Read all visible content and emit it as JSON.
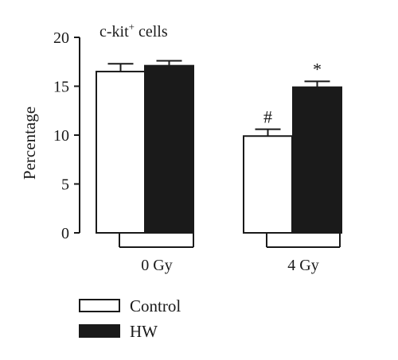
{
  "chart_data": {
    "type": "bar",
    "title": "c-kit",
    "title_superscript": "+",
    "title_suffix": " cells",
    "xlabel": "",
    "ylabel": "Percentage",
    "ylim": [
      0,
      20
    ],
    "yticks": [
      0,
      5,
      10,
      15,
      20
    ],
    "groups": [
      "0 Gy",
      "4 Gy"
    ],
    "series": [
      {
        "name": "Control",
        "values": [
          16.5,
          9.9
        ],
        "errors": [
          0.8,
          0.7
        ],
        "fill": "#ffffff",
        "stroke": "#1a1a1a"
      },
      {
        "name": "HW",
        "values": [
          17.1,
          14.9
        ],
        "errors": [
          0.5,
          0.6
        ],
        "fill": "#1a1a1a",
        "stroke": "#1a1a1a"
      }
    ],
    "annotations": [
      {
        "series": "Control",
        "group": "4 Gy",
        "text": "#"
      },
      {
        "series": "HW",
        "group": "4 Gy",
        "text": "*"
      }
    ],
    "legend": {
      "position": "bottom-left"
    },
    "grid": false
  }
}
